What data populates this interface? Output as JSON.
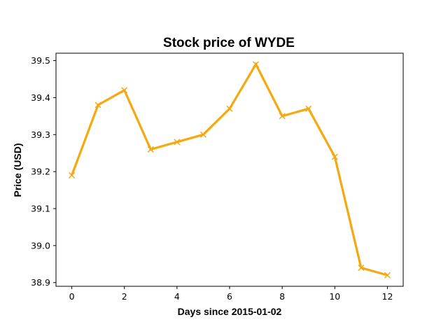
{
  "chart_data": {
    "type": "line",
    "title": "Stock price of WYDE",
    "xlabel": "Days since 2015-01-02",
    "ylabel": "Price (USD)",
    "x": [
      0,
      1,
      2,
      3,
      4,
      5,
      6,
      7,
      8,
      9,
      10,
      11,
      12
    ],
    "series": [
      {
        "values": [
          39.19,
          39.38,
          39.42,
          39.26,
          39.28,
          39.3,
          39.37,
          39.49,
          39.35,
          39.37,
          39.24,
          38.94,
          38.92
        ],
        "color": "#f5a80f",
        "marker": "x"
      }
    ],
    "xlim": [
      -0.6,
      12.6
    ],
    "ylim": [
      38.89,
      39.52
    ],
    "xticks": [
      0,
      2,
      4,
      6,
      8,
      10,
      12
    ],
    "xtick_labels": [
      "0",
      "2",
      "4",
      "6",
      "8",
      "10",
      "12"
    ],
    "yticks": [
      38.9,
      39.0,
      39.1,
      39.2,
      39.3,
      39.4,
      39.5
    ],
    "ytick_labels": [
      "38.9",
      "39.0",
      "39.1",
      "39.2",
      "39.3",
      "39.4",
      "39.5"
    ],
    "grid": false,
    "legend": "none"
  }
}
